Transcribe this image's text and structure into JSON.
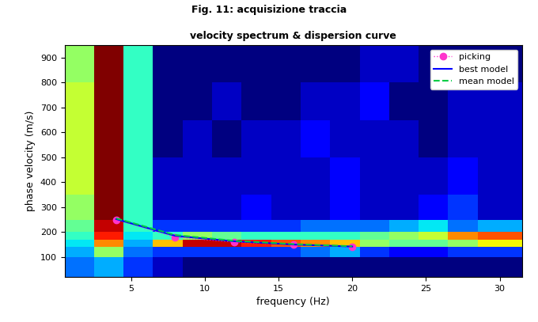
{
  "caption": "Fig. 11: acquisizione traccia",
  "chart_data": {
    "type": "heatmap",
    "title": "velocity spectrum & dispersion curve",
    "x_label": "frequency (Hz)",
    "y_label": "phase velocity (m/s)",
    "xlim": [
      0.5,
      31.5
    ],
    "ylim": [
      20,
      950
    ],
    "xticks": [
      5,
      10,
      15,
      20,
      25,
      30
    ],
    "yticks": [
      100,
      200,
      300,
      400,
      500,
      600,
      700,
      800,
      900
    ],
    "legend": "upper right",
    "x_edges": [
      0.5,
      2.5,
      4.5,
      6.5,
      8.5,
      10.5,
      12.5,
      14.5,
      16.5,
      18.5,
      20.5,
      22.5,
      24.5,
      26.5,
      28.5,
      31.5
    ],
    "y_edges": [
      20,
      100,
      140,
      170,
      200,
      250,
      350,
      500,
      650,
      800,
      950
    ],
    "cells": [
      [
        0.35,
        0.4,
        0.3,
        0.2,
        0.15,
        0.15,
        0.15,
        0.15,
        0.15,
        0.15,
        0.15,
        0.15,
        0.15,
        0.15,
        0.15
      ],
      [
        0.4,
        0.6,
        0.35,
        0.3,
        0.3,
        0.3,
        0.3,
        0.3,
        0.35,
        0.4,
        0.3,
        0.25,
        0.25,
        0.3,
        0.3
      ],
      [
        0.45,
        0.8,
        0.4,
        0.75,
        0.95,
        0.95,
        0.9,
        0.85,
        0.8,
        0.75,
        0.6,
        0.55,
        0.55,
        0.6,
        0.7
      ],
      [
        0.5,
        0.9,
        0.45,
        0.5,
        0.6,
        0.55,
        0.5,
        0.5,
        0.5,
        0.5,
        0.55,
        0.6,
        0.65,
        0.8,
        0.85
      ],
      [
        0.55,
        0.95,
        0.5,
        0.3,
        0.3,
        0.3,
        0.3,
        0.3,
        0.35,
        0.35,
        0.35,
        0.4,
        0.45,
        0.35,
        0.4
      ],
      [
        0.6,
        1.0,
        0.5,
        0.2,
        0.2,
        0.2,
        0.25,
        0.2,
        0.2,
        0.25,
        0.2,
        0.2,
        0.25,
        0.3,
        0.2
      ],
      [
        0.65,
        1.0,
        0.5,
        0.2,
        0.2,
        0.2,
        0.2,
        0.2,
        0.2,
        0.25,
        0.2,
        0.2,
        0.2,
        0.25,
        0.2
      ],
      [
        0.65,
        1.0,
        0.5,
        0.15,
        0.2,
        0.15,
        0.2,
        0.2,
        0.25,
        0.2,
        0.2,
        0.2,
        0.15,
        0.2,
        0.2
      ],
      [
        0.65,
        1.0,
        0.5,
        0.15,
        0.15,
        0.2,
        0.15,
        0.15,
        0.2,
        0.2,
        0.25,
        0.15,
        0.15,
        0.2,
        0.2
      ],
      [
        0.6,
        1.0,
        0.5,
        0.15,
        0.15,
        0.15,
        0.15,
        0.15,
        0.15,
        0.15,
        0.2,
        0.2,
        0.15,
        0.15,
        0.15
      ]
    ],
    "series": [
      {
        "name": "picking",
        "type": "line",
        "color": "#ff33cc",
        "marker": "o",
        "line_style": "dotted",
        "x": [
          4,
          8,
          12,
          16,
          20
        ],
        "values": [
          250,
          180,
          160,
          150,
          140
        ]
      },
      {
        "name": "best model",
        "type": "line",
        "color": "#0000ff",
        "marker": "none",
        "line_style": "solid",
        "x": [
          4,
          8,
          12,
          16,
          20
        ],
        "values": [
          252,
          185,
          163,
          150,
          142
        ]
      },
      {
        "name": "mean model",
        "type": "line",
        "color": "#00cc44",
        "marker": "none",
        "line_style": "dashed",
        "x": [
          4,
          8,
          12,
          16,
          20
        ],
        "values": [
          255,
          188,
          165,
          152,
          143
        ]
      }
    ]
  }
}
